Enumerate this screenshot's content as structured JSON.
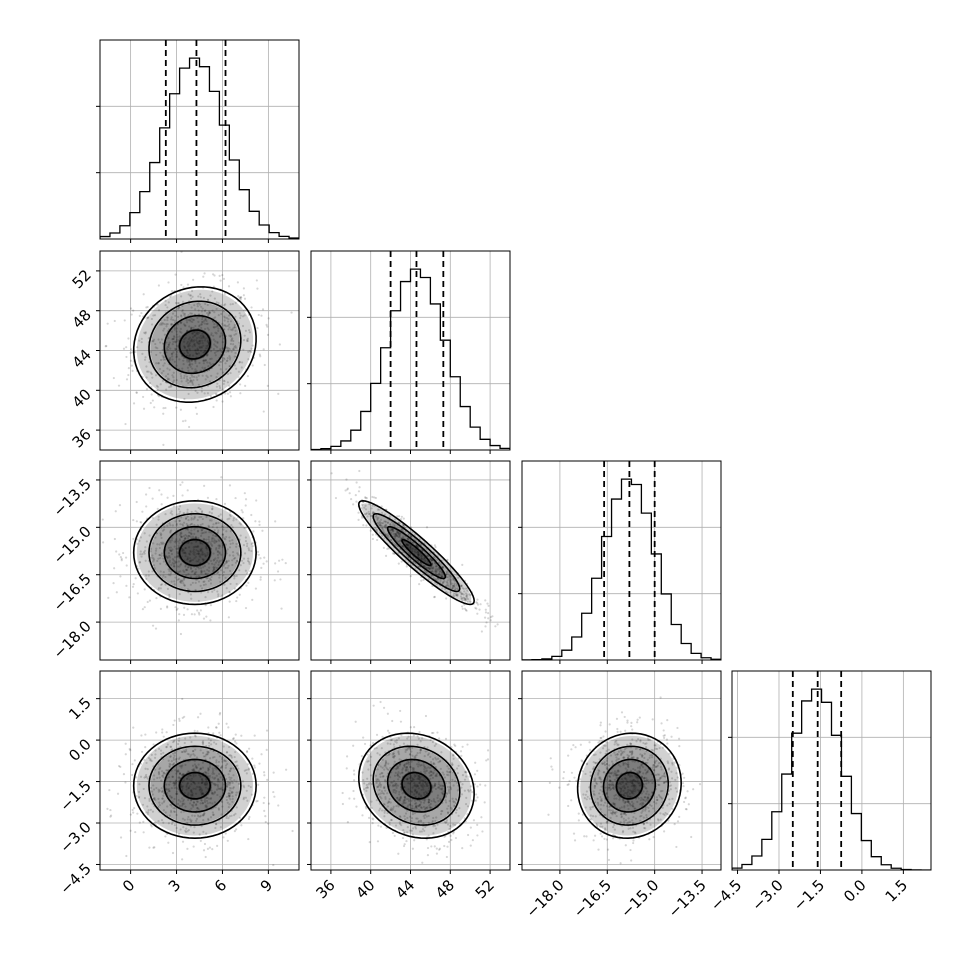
{
  "chart_data": {
    "type": "corner",
    "parameters": [
      {
        "mean": 4.2,
        "sd": 2.0,
        "range": [
          -2.0,
          11.0
        ],
        "ticks": [
          "0",
          "3",
          "6",
          "9"
        ],
        "tick_values": [
          0,
          3,
          6,
          9
        ],
        "quantiles": [
          2.3,
          4.3,
          6.2
        ],
        "hist_peak_bin": 4.5
      },
      {
        "mean": 44.6,
        "sd": 2.9,
        "range": [
          34.0,
          54.0
        ],
        "ticks": [
          "36",
          "40",
          "44",
          "48",
          "52"
        ],
        "tick_values": [
          36,
          40,
          44,
          48,
          52
        ],
        "quantiles": [
          42.0,
          44.6,
          47.3
        ],
        "hist_peak_bin": 44.6
      },
      {
        "mean": -15.8,
        "sd": 0.82,
        "range": [
          -19.2,
          -12.9
        ],
        "ticks": [
          "−18.0",
          "−16.5",
          "−15.0",
          "−13.5"
        ],
        "tick_values": [
          -18.0,
          -16.5,
          -15.0,
          -13.5
        ],
        "quantiles": [
          -16.6,
          -15.8,
          -15.0
        ],
        "hist_peak_bin": -15.8
      },
      {
        "mean": -1.65,
        "sd": 0.95,
        "range": [
          -4.7,
          2.5
        ],
        "ticks": [
          "−4.5",
          "−3.0",
          "−1.5",
          "0.0",
          "1.5"
        ],
        "tick_values": [
          -4.5,
          -3.0,
          -1.5,
          0.0,
          1.5
        ],
        "quantiles": [
          -2.5,
          -1.6,
          -0.75
        ],
        "hist_peak_bin": -1.6
      }
    ],
    "correlations": {
      "0-1": 0.1,
      "0-2": 0.0,
      "0-3": 0.0,
      "1-2": -0.93,
      "1-3": -0.15,
      "2-3": 0.05
    },
    "histogram_bins": 20,
    "contour_levels": [
      0.5,
      1.0,
      1.5,
      2.0
    ],
    "scatter_points": 900,
    "grid": true,
    "colors": {
      "line": "#000000",
      "grid": "#b0b0b0",
      "scatter": "#000000"
    }
  }
}
